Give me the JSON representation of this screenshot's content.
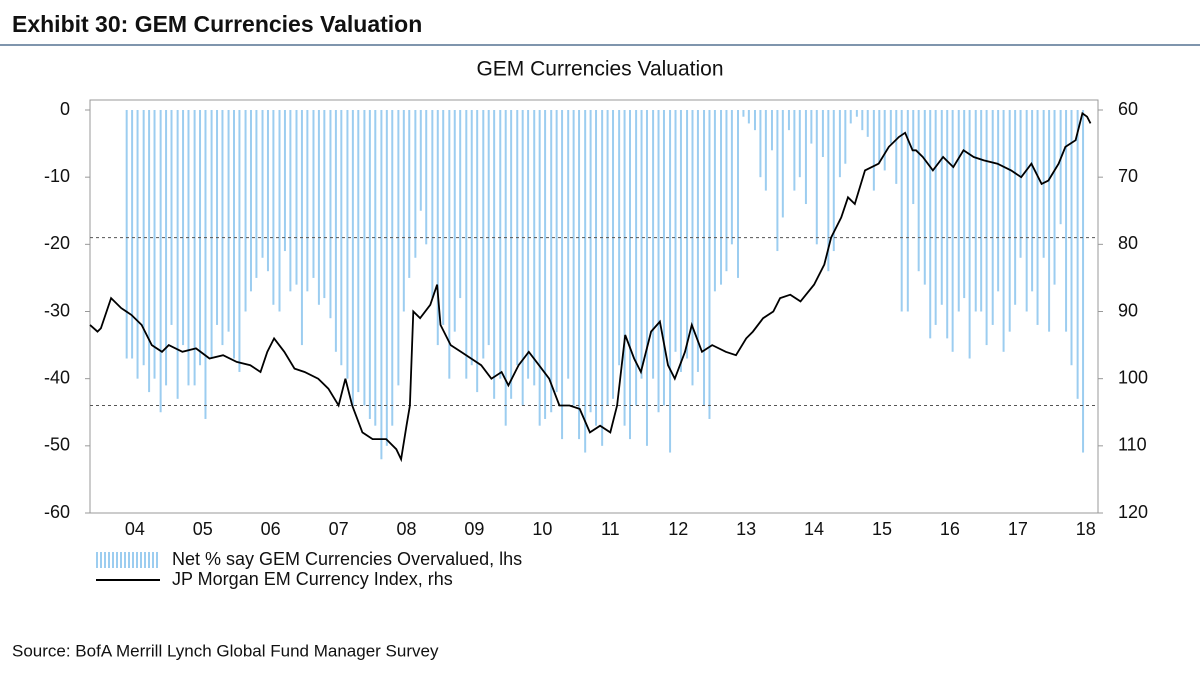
{
  "header": {
    "title": "Exhibit 30: GEM Currencies Valuation"
  },
  "source": "Source: BofA Merrill Lynch Global Fund Manager Survey",
  "chart_data": {
    "type": "bar-line",
    "title": "GEM Currencies Valuation",
    "xlim": [
      2003.84,
      2018.68
    ],
    "xticks": [
      {
        "value": 2004.5,
        "label": "04"
      },
      {
        "value": 2005.5,
        "label": "05"
      },
      {
        "value": 2006.5,
        "label": "06"
      },
      {
        "value": 2007.5,
        "label": "07"
      },
      {
        "value": 2008.5,
        "label": "08"
      },
      {
        "value": 2009.5,
        "label": "09"
      },
      {
        "value": 2010.5,
        "label": "10"
      },
      {
        "value": 2011.5,
        "label": "11"
      },
      {
        "value": 2012.5,
        "label": "12"
      },
      {
        "value": 2013.5,
        "label": "13"
      },
      {
        "value": 2014.5,
        "label": "14"
      },
      {
        "value": 2015.5,
        "label": "15"
      },
      {
        "value": 2016.5,
        "label": "16"
      },
      {
        "value": 2017.5,
        "label": "17"
      },
      {
        "value": 2018.5,
        "label": "18"
      }
    ],
    "ylim": [
      -60,
      0
    ],
    "yticks": [
      -60,
      -50,
      -40,
      -30,
      -20,
      -10,
      0
    ],
    "y2lim": [
      120,
      60
    ],
    "y2ticks": [
      120,
      110,
      100,
      90,
      80,
      70,
      60
    ],
    "reference_lines": [
      -19,
      -44
    ],
    "series": [
      {
        "name": "Net % say GEM Currencies Overvalued, lhs",
        "type": "bar",
        "color": "#9ccdf0",
        "x": [
          2004.38,
          2004.46,
          2004.54,
          2004.63,
          2004.71,
          2004.79,
          2004.88,
          2004.96,
          2005.04,
          2005.13,
          2005.21,
          2005.29,
          2005.38,
          2005.46,
          2005.54,
          2005.63,
          2005.71,
          2005.79,
          2005.88,
          2005.96,
          2006.04,
          2006.13,
          2006.21,
          2006.29,
          2006.38,
          2006.46,
          2006.54,
          2006.63,
          2006.71,
          2006.79,
          2006.88,
          2006.96,
          2007.04,
          2007.13,
          2007.21,
          2007.29,
          2007.38,
          2007.46,
          2007.54,
          2007.63,
          2007.71,
          2007.79,
          2007.88,
          2007.96,
          2008.04,
          2008.13,
          2008.21,
          2008.29,
          2008.38,
          2008.46,
          2008.54,
          2008.63,
          2008.71,
          2008.79,
          2008.88,
          2008.96,
          2009.04,
          2009.13,
          2009.21,
          2009.29,
          2009.38,
          2009.46,
          2009.54,
          2009.63,
          2009.71,
          2009.79,
          2009.88,
          2009.96,
          2010.04,
          2010.13,
          2010.21,
          2010.29,
          2010.38,
          2010.46,
          2010.54,
          2010.63,
          2010.71,
          2010.79,
          2010.88,
          2010.96,
          2011.04,
          2011.13,
          2011.21,
          2011.29,
          2011.38,
          2011.46,
          2011.54,
          2011.63,
          2011.71,
          2011.79,
          2011.88,
          2011.96,
          2012.04,
          2012.13,
          2012.21,
          2012.29,
          2012.38,
          2012.46,
          2012.54,
          2012.63,
          2012.71,
          2012.79,
          2012.88,
          2012.96,
          2013.04,
          2013.13,
          2013.21,
          2013.29,
          2013.38,
          2013.46,
          2013.54,
          2013.63,
          2013.71,
          2013.79,
          2013.88,
          2013.96,
          2014.04,
          2014.13,
          2014.21,
          2014.29,
          2014.38,
          2014.46,
          2014.54,
          2014.63,
          2014.71,
          2014.79,
          2014.88,
          2014.96,
          2015.04,
          2015.13,
          2015.21,
          2015.29,
          2015.38,
          2015.46,
          2015.54,
          2015.63,
          2015.71,
          2015.79,
          2015.88,
          2015.96,
          2016.04,
          2016.13,
          2016.21,
          2016.29,
          2016.38,
          2016.46,
          2016.54,
          2016.63,
          2016.71,
          2016.79,
          2016.88,
          2016.96,
          2017.04,
          2017.13,
          2017.21,
          2017.29,
          2017.38,
          2017.46,
          2017.54,
          2017.63,
          2017.71,
          2017.79,
          2017.88,
          2017.96,
          2018.04,
          2018.13,
          2018.21,
          2018.29,
          2018.38,
          2018.46
        ],
        "values": [
          -37,
          -37,
          -40,
          -38,
          -42,
          -40,
          -45,
          -41,
          -32,
          -43,
          -35,
          -41,
          -41,
          -38,
          -46,
          -37,
          -32,
          -35,
          -33,
          -37,
          -39,
          -30,
          -27,
          -25,
          -22,
          -24,
          -29,
          -30,
          -21,
          -27,
          -26,
          -35,
          -27,
          -25,
          -29,
          -28,
          -31,
          -36,
          -38,
          -40,
          -44,
          -42,
          -44,
          -46,
          -47,
          -52,
          -50,
          -47,
          -41,
          -30,
          -25,
          -22,
          -15,
          -20,
          -28,
          -35,
          -32,
          -40,
          -33,
          -28,
          -40,
          -38,
          -42,
          -37,
          -35,
          -43,
          -40,
          -47,
          -43,
          -38,
          -44,
          -40,
          -41,
          -47,
          -46,
          -45,
          -42,
          -49,
          -40,
          -44,
          -49,
          -51,
          -45,
          -47,
          -50,
          -44,
          -43,
          -38,
          -47,
          -49,
          -44,
          -40,
          -50,
          -40,
          -45,
          -44,
          -51,
          -36,
          -39,
          -37,
          -41,
          -39,
          -44,
          -46,
          -27,
          -26,
          -24,
          -20,
          -25,
          -1,
          -2,
          -3,
          -10,
          -12,
          -6,
          -21,
          -16,
          -3,
          -12,
          -10,
          -14,
          -5,
          -20,
          -7,
          -24,
          -21,
          -10,
          -8,
          -2,
          -1,
          -3,
          -4,
          -12,
          -8,
          -9,
          -5,
          -11,
          -30,
          -30,
          -14,
          -24,
          -26,
          -34,
          -32,
          -29,
          -34,
          -36,
          -30,
          -28,
          -37,
          -30,
          -30,
          -35,
          -32,
          -27,
          -36,
          -33,
          -29,
          -22,
          -30,
          -27,
          -32,
          -22,
          -33,
          -26,
          -17,
          -33,
          -38,
          -43,
          -51
        ]
      },
      {
        "name": "JP Morgan EM Currency Index, rhs",
        "type": "line",
        "axis": "y2",
        "color": "#000000",
        "x": [
          2003.84,
          2003.95,
          2004.0,
          2004.15,
          2004.3,
          2004.45,
          2004.6,
          2004.75,
          2004.9,
          2005.0,
          2005.2,
          2005.4,
          2005.6,
          2005.8,
          2006.0,
          2006.2,
          2006.35,
          2006.45,
          2006.55,
          2006.7,
          2006.85,
          2007.0,
          2007.2,
          2007.35,
          2007.5,
          2007.6,
          2007.7,
          2007.85,
          2008.0,
          2008.2,
          2008.35,
          2008.42,
          2008.5,
          2008.55,
          2008.6,
          2008.7,
          2008.85,
          2008.95,
          2009.0,
          2009.15,
          2009.3,
          2009.45,
          2009.6,
          2009.75,
          2009.9,
          2010.0,
          2010.15,
          2010.3,
          2010.45,
          2010.6,
          2010.75,
          2010.9,
          2011.05,
          2011.2,
          2011.35,
          2011.5,
          2011.6,
          2011.72,
          2011.85,
          2011.95,
          2012.1,
          2012.23,
          2012.35,
          2012.45,
          2012.6,
          2012.7,
          2012.85,
          2013.0,
          2013.2,
          2013.35,
          2013.5,
          2013.6,
          2013.75,
          2013.9,
          2014.0,
          2014.15,
          2014.3,
          2014.5,
          2014.65,
          2014.75,
          2014.9,
          2015.0,
          2015.1,
          2015.25,
          2015.45,
          2015.6,
          2015.75,
          2015.84,
          2015.95,
          2016.0,
          2016.1,
          2016.25,
          2016.4,
          2016.55,
          2016.7,
          2016.85,
          2017.0,
          2017.2,
          2017.4,
          2017.55,
          2017.7,
          2017.85,
          2017.95,
          2018.1,
          2018.2,
          2018.35,
          2018.45,
          2018.52,
          2018.57
        ],
        "values": [
          92,
          93,
          92.5,
          88,
          89.5,
          90.5,
          92,
          95,
          96,
          95,
          96,
          95.5,
          97,
          96.5,
          97.5,
          98,
          99,
          96,
          94,
          96,
          98.5,
          99,
          100,
          101.5,
          104,
          100,
          104,
          108,
          109,
          109,
          110.5,
          112,
          107,
          104,
          90,
          91,
          89,
          86,
          92,
          95,
          96,
          97,
          98,
          100,
          99,
          101,
          98,
          96,
          98,
          100,
          104,
          104,
          104.5,
          108,
          107,
          108,
          104,
          93.5,
          97,
          99,
          93,
          91.5,
          98,
          100,
          96,
          92,
          96,
          95,
          96,
          96.5,
          94,
          93,
          91,
          90,
          88,
          87.5,
          88.5,
          86,
          83,
          79,
          76,
          73,
          74,
          69,
          68,
          65.5,
          64,
          63.4,
          66,
          66,
          67,
          69,
          67,
          68.5,
          66,
          67,
          67.5,
          68,
          69,
          70,
          68,
          71,
          70.5,
          68,
          65.5,
          64.5,
          60.5,
          61,
          62
        ]
      }
    ]
  }
}
